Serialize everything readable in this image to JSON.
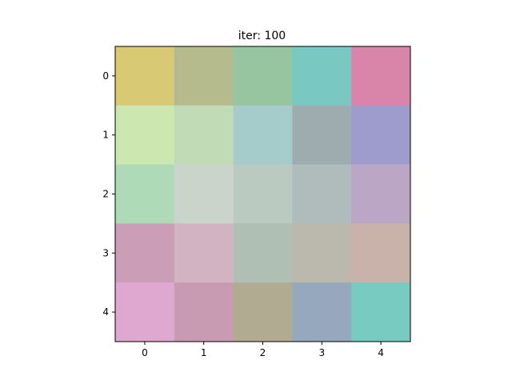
{
  "chart_data": {
    "type": "heatmap",
    "title": "iter: 100",
    "xlabel": "",
    "ylabel": "",
    "grid": false,
    "x_ticks": [
      "0",
      "1",
      "2",
      "3",
      "4"
    ],
    "y_ticks": [
      "0",
      "1",
      "2",
      "3",
      "4"
    ],
    "cell_colors": [
      [
        "#d8c974",
        "#b6bb8d",
        "#96c59f",
        "#79c9c2",
        "#d985aa"
      ],
      [
        "#cde7b1",
        "#c0dbb5",
        "#a6cbcb",
        "#9eabaf",
        "#9d9ccc"
      ],
      [
        "#aedab8",
        "#cad4cb",
        "#bacac1",
        "#afbcbb",
        "#bca6c5"
      ],
      [
        "#cc9db7",
        "#d1b3c1",
        "#afbfb3",
        "#bbb9ae",
        "#c9b2a9"
      ],
      [
        "#dfa8d1",
        "#c99bb3",
        "#b1ab91",
        "#95a8bd",
        "#77cbc1"
      ]
    ]
  }
}
